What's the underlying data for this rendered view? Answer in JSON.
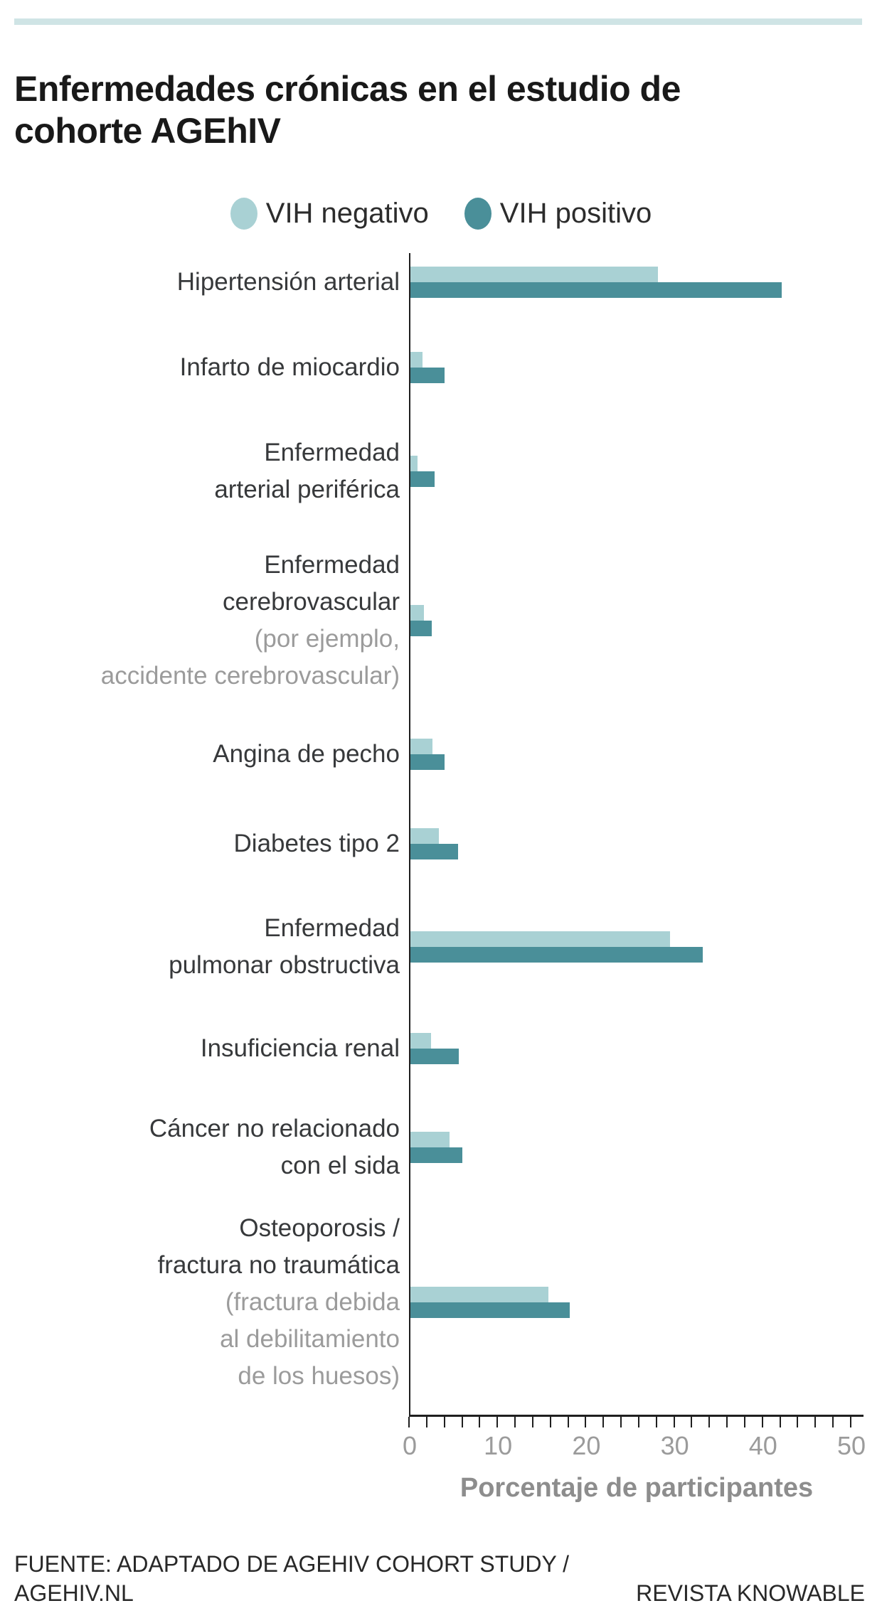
{
  "page": {
    "title": "Enfermedades crónicas en el estudio de\ncohorte AGEhIV",
    "footer_source_line1": "FUENTE: ADAPTADO DE AGEHIV COHORT STUDY /",
    "footer_source_line2": "AGEHIV.NL",
    "footer_credit": "REVISTA KNOWABLE"
  },
  "colors": {
    "accent_rule": "#cfe4e5",
    "vih_negativo": "#a9d1d4",
    "vih_positivo": "#4a8f99",
    "axis": "#1f1f1f",
    "tick_label": "#9b9b9b",
    "category_label": "#37393b",
    "category_label_muted": "#9b9b9b"
  },
  "legend": [
    {
      "label": "VIH negativo",
      "color": "#a9d1d4"
    },
    {
      "label": "VIH positivo",
      "color": "#4a8f99"
    }
  ],
  "chart_data": {
    "type": "bar",
    "orientation": "horizontal",
    "title": "Enfermedades crónicas en el estudio de cohorte AGEhIV",
    "xlabel": "Porcentaje de participantes",
    "ylabel": "",
    "xlim": [
      0,
      50
    ],
    "x_ticks": [
      0,
      10,
      20,
      30,
      40,
      50
    ],
    "x_tick_labels": [
      "0",
      "10",
      "20",
      "30",
      "40",
      "50"
    ],
    "minor_tick_step": 2,
    "grid": false,
    "legend_position": "top",
    "categories": [
      {
        "name": "Hipertensión arterial",
        "lines": [
          {
            "text": "Hipertensión arterial",
            "muted": false
          }
        ]
      },
      {
        "name": "Infarto de miocardio",
        "lines": [
          {
            "text": "Infarto de miocardio",
            "muted": false
          }
        ]
      },
      {
        "name": "Enfermedad arterial periférica",
        "lines": [
          {
            "text": "Enfermedad",
            "muted": false
          },
          {
            "text": "arterial periférica",
            "muted": false
          }
        ]
      },
      {
        "name": "Enfermedad cerebrovascular (por ejemplo, accidente cerebrovascular)",
        "lines": [
          {
            "text": "Enfermedad",
            "muted": false
          },
          {
            "text": "cerebrovascular",
            "muted": false
          },
          {
            "text": "(por ejemplo,",
            "muted": true
          },
          {
            "text": "accidente cerebrovascular)",
            "muted": true
          }
        ]
      },
      {
        "name": "Angina de pecho",
        "lines": [
          {
            "text": "Angina de pecho",
            "muted": false
          }
        ]
      },
      {
        "name": "Diabetes tipo 2",
        "lines": [
          {
            "text": "Diabetes tipo 2",
            "muted": false
          }
        ]
      },
      {
        "name": "Enfermedad pulmonar obstructiva",
        "lines": [
          {
            "text": "Enfermedad",
            "muted": false
          },
          {
            "text": "pulmonar obstructiva",
            "muted": false
          }
        ]
      },
      {
        "name": "Insuficiencia renal",
        "lines": [
          {
            "text": "Insuficiencia renal",
            "muted": false
          }
        ]
      },
      {
        "name": "Cáncer no relacionado con el sida",
        "lines": [
          {
            "text": "Cáncer no relacionado",
            "muted": false
          },
          {
            "text": "con el sida",
            "muted": false
          }
        ]
      },
      {
        "name": "Osteoporosis / fractura no traumática (fractura debida al debilitamiento de los huesos)",
        "lines": [
          {
            "text": "Osteoporosis /",
            "muted": false
          },
          {
            "text": "fractura no traumática",
            "muted": false
          },
          {
            "text": "(fractura debida",
            "muted": true
          },
          {
            "text": "al debilitamiento",
            "muted": true
          },
          {
            "text": "de los huesos)",
            "muted": true
          }
        ]
      }
    ],
    "series": [
      {
        "name": "VIH negativo",
        "values": [
          28,
          1.4,
          0.8,
          1.5,
          2.5,
          3.2,
          29.4,
          2.3,
          4.4,
          15.6
        ]
      },
      {
        "name": "VIH positivo",
        "values": [
          42,
          3.9,
          2.7,
          2.4,
          3.9,
          5.4,
          33.1,
          5.5,
          5.9,
          18
        ]
      }
    ]
  }
}
